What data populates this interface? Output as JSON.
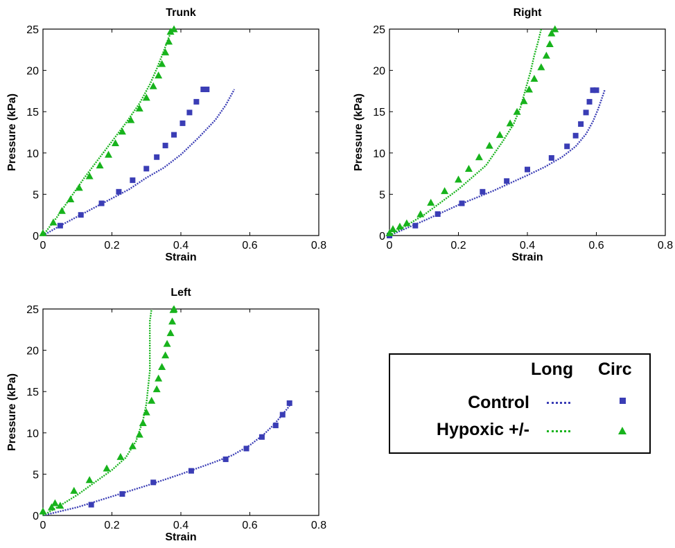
{
  "colors": {
    "control": "#3a3db5",
    "hypoxic": "#17b31c"
  },
  "legend": {
    "col_long": "Long",
    "col_circ": "Circ",
    "row_control": "Control",
    "row_hypoxic": "Hypoxic +/-"
  },
  "chart_data": [
    {
      "type": "scatter",
      "title": "Trunk",
      "xlabel": "Strain",
      "ylabel": "Pressure (kPa)",
      "xlim": [
        0,
        0.8
      ],
      "ylim": [
        0,
        25
      ],
      "xticks": [
        "0",
        "0.2",
        "0.4",
        "0.6",
        "0.8"
      ],
      "yticks": [
        "0",
        "5",
        "10",
        "15",
        "20",
        "25"
      ],
      "grid": false,
      "series": [
        {
          "group": "control",
          "kind": "long",
          "x": [
            0,
            0.05,
            0.1,
            0.15,
            0.2,
            0.25,
            0.3,
            0.35,
            0.4,
            0.45,
            0.5,
            0.53,
            0.555
          ],
          "y": [
            0,
            1.2,
            2.3,
            3.4,
            4.5,
            5.6,
            7.0,
            8.2,
            9.8,
            11.8,
            14.0,
            15.8,
            17.7
          ]
        },
        {
          "group": "control",
          "kind": "circ",
          "x": [
            0.05,
            0.11,
            0.17,
            0.22,
            0.26,
            0.3,
            0.33,
            0.355,
            0.38,
            0.405,
            0.425,
            0.445,
            0.465,
            0.475
          ],
          "y": [
            1.2,
            2.5,
            3.9,
            5.3,
            6.7,
            8.1,
            9.5,
            10.9,
            12.2,
            13.6,
            14.9,
            16.2,
            17.7,
            17.7
          ]
        },
        {
          "group": "hypoxic",
          "kind": "long",
          "x": [
            0,
            0.04,
            0.08,
            0.12,
            0.16,
            0.2,
            0.24,
            0.28,
            0.31,
            0.33,
            0.35,
            0.365,
            0.375
          ],
          "y": [
            0,
            2.2,
            4.6,
            7.0,
            9.2,
            11.4,
            13.6,
            16.0,
            18.3,
            20.2,
            22.3,
            24.0,
            25
          ]
        },
        {
          "group": "hypoxic",
          "kind": "circ",
          "x": [
            0,
            0.03,
            0.055,
            0.08,
            0.105,
            0.135,
            0.165,
            0.19,
            0.21,
            0.23,
            0.255,
            0.28,
            0.3,
            0.32,
            0.335,
            0.345,
            0.355,
            0.365,
            0.37,
            0.38
          ],
          "y": [
            0.3,
            1.6,
            3.0,
            4.4,
            5.8,
            7.2,
            8.5,
            9.8,
            11.2,
            12.6,
            14.0,
            15.4,
            16.7,
            18.1,
            19.4,
            20.8,
            22.2,
            23.5,
            24.7,
            25
          ]
        }
      ]
    },
    {
      "type": "scatter",
      "title": "Right",
      "xlabel": "Strain",
      "ylabel": "Pressure (kPa)",
      "xlim": [
        0,
        0.8
      ],
      "ylim": [
        0,
        25
      ],
      "xticks": [
        "0",
        "0.2",
        "0.4",
        "0.6",
        "0.8"
      ],
      "yticks": [
        "0",
        "5",
        "10",
        "15",
        "20",
        "25"
      ],
      "grid": false,
      "series": [
        {
          "group": "control",
          "kind": "long",
          "x": [
            0,
            0.1,
            0.2,
            0.3,
            0.4,
            0.45,
            0.5,
            0.54,
            0.57,
            0.59,
            0.605,
            0.615,
            0.625
          ],
          "y": [
            0,
            1.8,
            3.7,
            5.4,
            7.3,
            8.3,
            9.5,
            10.8,
            12.3,
            13.8,
            15.3,
            16.5,
            17.7
          ]
        },
        {
          "group": "control",
          "kind": "circ",
          "x": [
            0,
            0.075,
            0.14,
            0.21,
            0.27,
            0.34,
            0.4,
            0.47,
            0.515,
            0.54,
            0.555,
            0.57,
            0.58,
            0.59,
            0.6
          ],
          "y": [
            0,
            1.2,
            2.6,
            3.9,
            5.3,
            6.6,
            8.0,
            9.4,
            10.8,
            12.1,
            13.5,
            14.9,
            16.2,
            17.6,
            17.6
          ]
        },
        {
          "group": "hypoxic",
          "kind": "long",
          "x": [
            0,
            0.1,
            0.2,
            0.28,
            0.33,
            0.36,
            0.38,
            0.39,
            0.4,
            0.41,
            0.42,
            0.43,
            0.44
          ],
          "y": [
            0,
            2.5,
            5.6,
            8.5,
            11.5,
            13.5,
            15.5,
            17.0,
            18.5,
            20.0,
            21.8,
            23.3,
            25
          ]
        },
        {
          "group": "hypoxic",
          "kind": "circ",
          "x": [
            0,
            0.01,
            0.03,
            0.05,
            0.09,
            0.12,
            0.16,
            0.2,
            0.23,
            0.26,
            0.29,
            0.32,
            0.35,
            0.37,
            0.39,
            0.405,
            0.42,
            0.44,
            0.455,
            0.465,
            0.47,
            0.48
          ],
          "y": [
            0.3,
            0.8,
            1.1,
            1.5,
            2.6,
            4.0,
            5.4,
            6.8,
            8.1,
            9.5,
            10.9,
            12.2,
            13.6,
            15.0,
            16.3,
            17.7,
            19.0,
            20.4,
            21.8,
            23.2,
            24.5,
            25
          ]
        }
      ]
    },
    {
      "type": "scatter",
      "title": "Left",
      "xlabel": "Strain",
      "ylabel": "Pressure (kPa)",
      "xlim": [
        0,
        0.8
      ],
      "ylim": [
        0,
        25
      ],
      "xticks": [
        "0",
        "0.2",
        "0.4",
        "0.6",
        "0.8"
      ],
      "yticks": [
        "0",
        "5",
        "10",
        "15",
        "20",
        "25"
      ],
      "grid": false,
      "series": [
        {
          "group": "control",
          "kind": "long",
          "x": [
            0,
            0.1,
            0.2,
            0.3,
            0.4,
            0.5,
            0.55,
            0.6,
            0.64,
            0.67,
            0.69,
            0.71,
            0.72
          ],
          "y": [
            0,
            1.0,
            2.3,
            3.6,
            5.0,
            6.5,
            7.3,
            8.5,
            9.8,
            11.0,
            12.0,
            13.0,
            13.6
          ]
        },
        {
          "group": "control",
          "kind": "circ",
          "x": [
            0.14,
            0.23,
            0.32,
            0.43,
            0.53,
            0.59,
            0.635,
            0.675,
            0.695,
            0.715
          ],
          "y": [
            1.3,
            2.6,
            4.0,
            5.4,
            6.8,
            8.1,
            9.5,
            10.9,
            12.2,
            13.6
          ]
        },
        {
          "group": "hypoxic",
          "kind": "long",
          "x": [
            0,
            0.05,
            0.1,
            0.15,
            0.2,
            0.24,
            0.27,
            0.29,
            0.3,
            0.305,
            0.31,
            0.31,
            0.31,
            0.31,
            0.315
          ],
          "y": [
            0,
            1.2,
            2.5,
            4.0,
            5.5,
            7.0,
            9.0,
            11.5,
            13.5,
            15.5,
            17.5,
            19.5,
            21.5,
            23.5,
            25
          ]
        },
        {
          "group": "hypoxic",
          "kind": "circ",
          "x": [
            0,
            0.025,
            0.035,
            0.05,
            0.09,
            0.135,
            0.185,
            0.225,
            0.26,
            0.28,
            0.29,
            0.3,
            0.315,
            0.33,
            0.335,
            0.345,
            0.355,
            0.36,
            0.37,
            0.375,
            0.378,
            0.38
          ],
          "y": [
            0.5,
            1.0,
            1.5,
            1.2,
            3.0,
            4.3,
            5.7,
            7.1,
            8.4,
            9.8,
            11.2,
            12.5,
            13.9,
            15.3,
            16.6,
            18.0,
            19.4,
            20.8,
            22.1,
            23.5,
            24.9,
            25
          ]
        }
      ]
    }
  ]
}
